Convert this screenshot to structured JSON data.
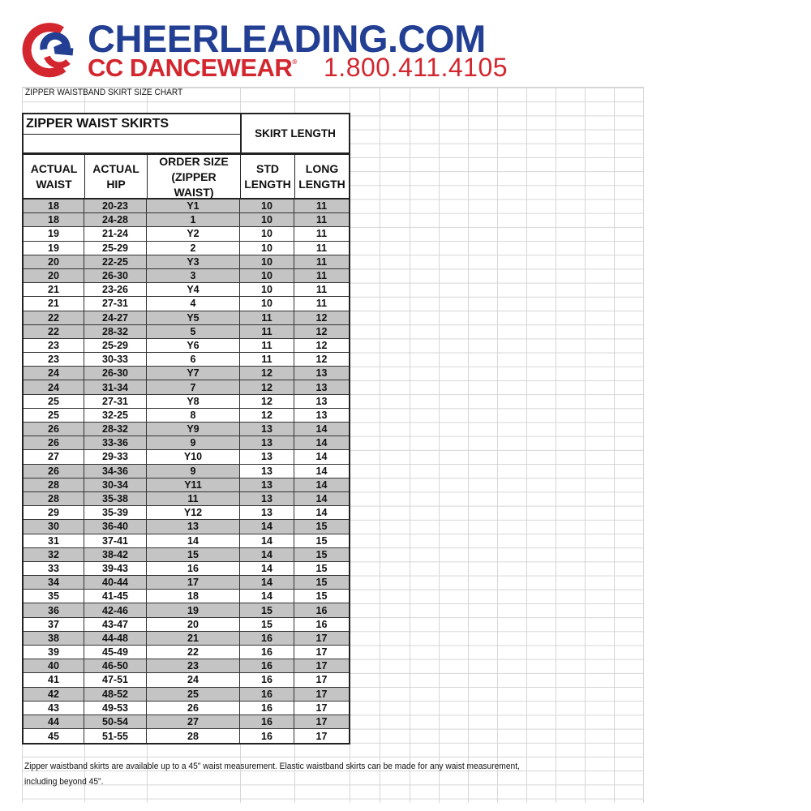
{
  "brand": {
    "name": "CHEERLEADING.COM",
    "sub": "CC DANCEWEAR",
    "registered": "®",
    "phone": "1.800.411.4105",
    "colors": {
      "blue": "#233f94",
      "red": "#d3262f"
    }
  },
  "sheet_title": "ZIPPER WAISTBAND SKIRT SIZE CHART",
  "table": {
    "title": "ZIPPER WAIST SKIRTS",
    "group_header": "SKIRT LENGTH",
    "columns": [
      [
        "ACTUAL",
        "WAIST"
      ],
      [
        "ACTUAL",
        "HIP"
      ],
      [
        "ORDER SIZE",
        "(ZIPPER",
        "WAIST)"
      ],
      [
        "STD",
        "LENGTH"
      ],
      [
        "LONG",
        "LENGTH"
      ]
    ],
    "shade_color": "#c4c4c4",
    "rows": [
      {
        "v": [
          "18",
          "20-23",
          "Y1",
          "10",
          "11"
        ],
        "shade": "ggggg"
      },
      {
        "v": [
          "18",
          "24-28",
          "1",
          "10",
          "11"
        ],
        "shade": "ggggg"
      },
      {
        "v": [
          "19",
          "21-24",
          "Y2",
          "10",
          "11"
        ],
        "shade": "wwwww"
      },
      {
        "v": [
          "19",
          "25-29",
          "2",
          "10",
          "11"
        ],
        "shade": "wwwww"
      },
      {
        "v": [
          "20",
          "22-25",
          "Y3",
          "10",
          "11"
        ],
        "shade": "ggggg"
      },
      {
        "v": [
          "20",
          "26-30",
          "3",
          "10",
          "11"
        ],
        "shade": "ggggg"
      },
      {
        "v": [
          "21",
          "23-26",
          "Y4",
          "10",
          "11"
        ],
        "shade": "wwwww"
      },
      {
        "v": [
          "21",
          "27-31",
          "4",
          "10",
          "11"
        ],
        "shade": "wwwww"
      },
      {
        "v": [
          "22",
          "24-27",
          "Y5",
          "11",
          "12"
        ],
        "shade": "ggggg"
      },
      {
        "v": [
          "22",
          "28-32",
          "5",
          "11",
          "12"
        ],
        "shade": "ggggg"
      },
      {
        "v": [
          "23",
          "25-29",
          "Y6",
          "11",
          "12"
        ],
        "shade": "wwwww"
      },
      {
        "v": [
          "23",
          "30-33",
          "6",
          "11",
          "12"
        ],
        "shade": "wwwww"
      },
      {
        "v": [
          "24",
          "26-30",
          "Y7",
          "12",
          "13"
        ],
        "shade": "ggggg"
      },
      {
        "v": [
          "24",
          "31-34",
          "7",
          "12",
          "13"
        ],
        "shade": "ggggg"
      },
      {
        "v": [
          "25",
          "27-31",
          "Y8",
          "12",
          "13"
        ],
        "shade": "wwwww"
      },
      {
        "v": [
          "25",
          "32-25",
          "8",
          "12",
          "13"
        ],
        "shade": "wwwww"
      },
      {
        "v": [
          "26",
          "28-32",
          "Y9",
          "13",
          "14"
        ],
        "shade": "ggggg"
      },
      {
        "v": [
          "26",
          "33-36",
          "9",
          "13",
          "14"
        ],
        "shade": "ggggg"
      },
      {
        "v": [
          "27",
          "29-33",
          "Y10",
          "13",
          "14"
        ],
        "shade": "wwwww"
      },
      {
        "v": [
          "26",
          "34-36",
          "9",
          "13",
          "14"
        ],
        "shade": "gggww"
      },
      {
        "v": [
          "28",
          "30-34",
          "Y11",
          "13",
          "14"
        ],
        "shade": "ggggg"
      },
      {
        "v": [
          "28",
          "35-38",
          "11",
          "13",
          "14"
        ],
        "shade": "ggggg"
      },
      {
        "v": [
          "29",
          "35-39",
          "Y12",
          "13",
          "14"
        ],
        "shade": "wwwww"
      },
      {
        "v": [
          "30",
          "36-40",
          "13",
          "14",
          "15"
        ],
        "shade": "ggggg"
      },
      {
        "v": [
          "31",
          "37-41",
          "14",
          "14",
          "15"
        ],
        "shade": "wwwww"
      },
      {
        "v": [
          "32",
          "38-42",
          "15",
          "14",
          "15"
        ],
        "shade": "ggggg"
      },
      {
        "v": [
          "33",
          "39-43",
          "16",
          "14",
          "15"
        ],
        "shade": "wwwww"
      },
      {
        "v": [
          "34",
          "40-44",
          "17",
          "14",
          "15"
        ],
        "shade": "ggggg"
      },
      {
        "v": [
          "35",
          "41-45",
          "18",
          "14",
          "15"
        ],
        "shade": "wwwww"
      },
      {
        "v": [
          "36",
          "42-46",
          "19",
          "15",
          "16"
        ],
        "shade": "ggggg"
      },
      {
        "v": [
          "37",
          "43-47",
          "20",
          "15",
          "16"
        ],
        "shade": "wwwww"
      },
      {
        "v": [
          "38",
          "44-48",
          "21",
          "16",
          "17"
        ],
        "shade": "ggggg"
      },
      {
        "v": [
          "39",
          "45-49",
          "22",
          "16",
          "17"
        ],
        "shade": "wwwww"
      },
      {
        "v": [
          "40",
          "46-50",
          "23",
          "16",
          "17"
        ],
        "shade": "ggggg"
      },
      {
        "v": [
          "41",
          "47-51",
          "24",
          "16",
          "17"
        ],
        "shade": "wwwww"
      },
      {
        "v": [
          "42",
          "48-52",
          "25",
          "16",
          "17"
        ],
        "shade": "ggggg"
      },
      {
        "v": [
          "43",
          "49-53",
          "26",
          "16",
          "17"
        ],
        "shade": "wwwww"
      },
      {
        "v": [
          "44",
          "50-54",
          "27",
          "16",
          "17"
        ],
        "shade": "ggggg"
      },
      {
        "v": [
          "45",
          "51-55",
          "28",
          "16",
          "17"
        ],
        "shade": "wwwww"
      }
    ]
  },
  "footnote": [
    "Zipper waistband skirts are available up to a 45\" waist measurement.  Elastic waistband skirts can be made for any waist measurement,",
    "including beyond 45\"."
  ]
}
